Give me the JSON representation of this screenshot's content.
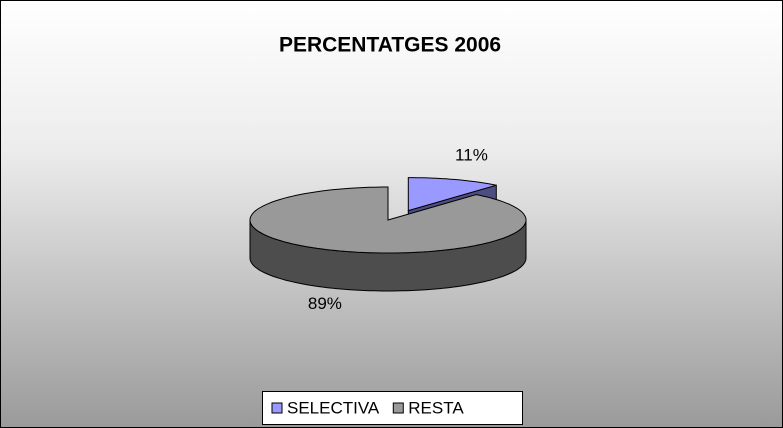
{
  "chart_data": {
    "type": "pie3d",
    "title": "PERCENTATGES 2006",
    "categories": [
      "SELECTIVA",
      "RESTA"
    ],
    "values": [
      11,
      89
    ],
    "value_labels": [
      "11%",
      "89%"
    ],
    "colors": [
      "#9999ff",
      "#999999"
    ],
    "legend": "bottom"
  }
}
